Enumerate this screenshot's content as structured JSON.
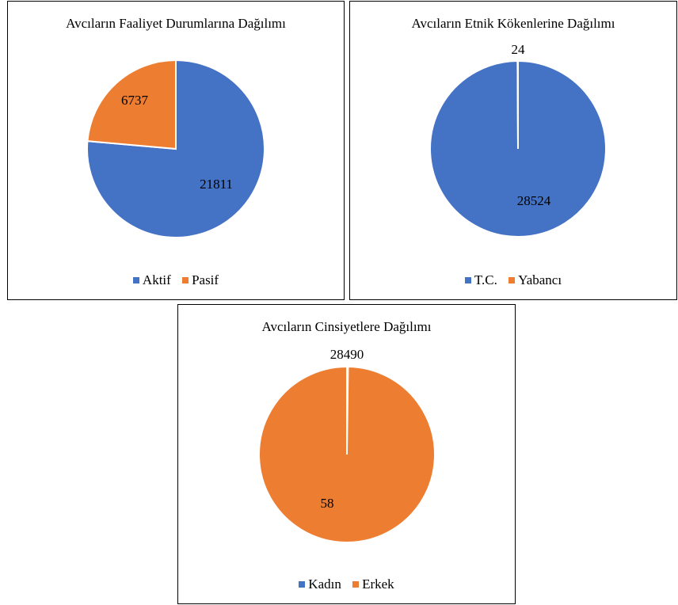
{
  "chart_data": [
    {
      "type": "pie",
      "title": "Avcıların Faaliyet Durumlarına Dağılımı",
      "categories": [
        "Aktif",
        "Pasif"
      ],
      "values": [
        21811,
        6737
      ],
      "colors": [
        "#4472C4",
        "#ED7D31"
      ],
      "legend_position": "bottom"
    },
    {
      "type": "pie",
      "title": "Avcıların Etnik Kökenlerine Dağılımı",
      "categories": [
        "T.C.",
        "Yabancı"
      ],
      "values": [
        28524,
        24
      ],
      "colors": [
        "#4472C4",
        "#ED7D31"
      ],
      "legend_position": "bottom"
    },
    {
      "type": "pie",
      "title": "Avcıların Cinsiyetlere Dağılımı",
      "categories": [
        "Kadın",
        "Erkek"
      ],
      "values": [
        58,
        28490
      ],
      "colors": [
        "#4472C4",
        "#ED7D31"
      ],
      "legend_position": "bottom"
    }
  ]
}
